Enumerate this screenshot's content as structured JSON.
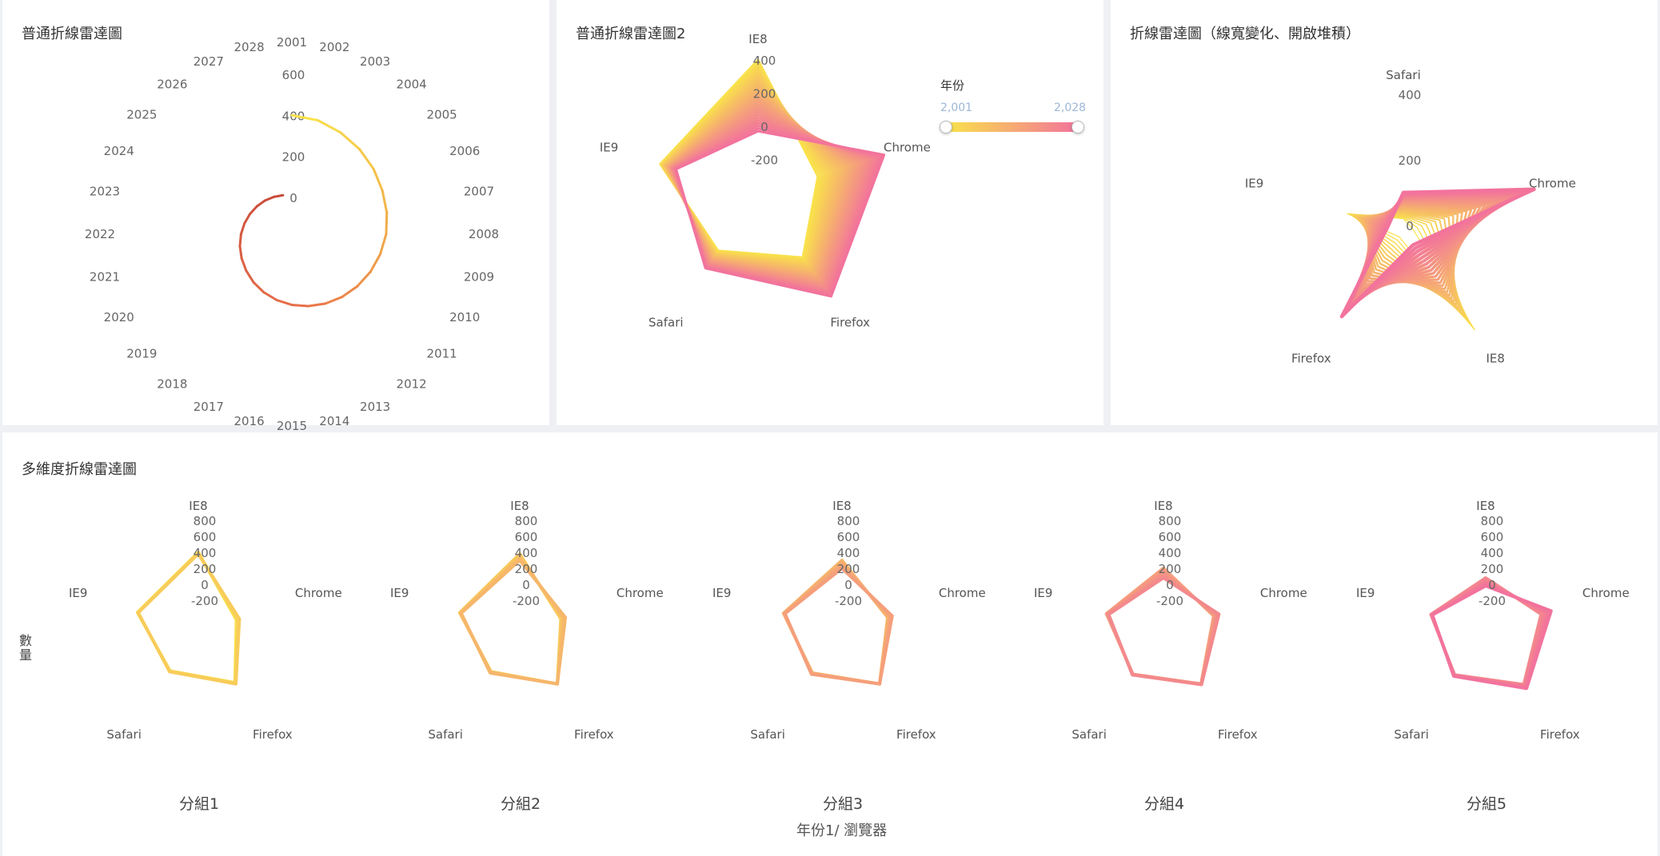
{
  "colors": {
    "low": "#f9e24a",
    "high": "#f2739c",
    "mid": "#e8704a",
    "dark": "#c84a3a"
  },
  "years": {
    "start": 2001,
    "end": 2028
  },
  "panels": [
    {
      "title": "普通折線雷達圖"
    },
    {
      "title": "普通折線雷達圖2"
    },
    {
      "title": "折線雷達圖（線寬變化、開啟堆積）"
    },
    {
      "title": "多維度折線雷達圖"
    }
  ],
  "visual_map": {
    "title": "年份",
    "min_label": "2,001",
    "max_label": "2,028"
  },
  "x_axis_name": "年份1/ 瀏覽器",
  "y_axis_name": "數量",
  "chart_data": [
    {
      "type": "line",
      "subtype": "polar",
      "title": "普通折線雷達圖",
      "angle_labels": [
        "2001",
        "2002",
        "2003",
        "2004",
        "2005",
        "2006",
        "2007",
        "2008",
        "2009",
        "2010",
        "2011",
        "2012",
        "2013",
        "2014",
        "2015",
        "2016",
        "2017",
        "2018",
        "2019",
        "2020",
        "2021",
        "2022",
        "2023",
        "2024",
        "2025",
        "2026",
        "2027",
        "2028"
      ],
      "radius_ticks": [
        "0",
        "200",
        "400",
        "600"
      ],
      "radius_range": [
        -180,
        600
      ],
      "values": [
        400,
        390,
        370,
        350,
        330,
        310,
        295,
        280,
        262,
        245,
        228,
        212,
        196,
        180,
        165,
        150,
        135,
        120,
        105,
        92,
        80,
        68,
        57,
        47,
        38,
        30,
        22,
        15
      ]
    },
    {
      "type": "line",
      "subtype": "radar",
      "title": "普通折線雷達圖2",
      "indicators": [
        "IE8",
        "Chrome",
        "Firefox",
        "Safari",
        "IE9"
      ],
      "radius_ticks": [
        "-200",
        "0",
        "200",
        "400"
      ],
      "radius_range": [
        -420,
        400
      ],
      "series_start": [
        400,
        -40,
        40,
        -10,
        200
      ],
      "series_end": [
        -30,
        380,
        330,
        120,
        100
      ],
      "series_count": 28
    },
    {
      "type": "line",
      "subtype": "radar",
      "title": "折線雷達圖（線寬變化、開啟堆積）",
      "indicators": [
        "Safari",
        "Chrome",
        "IE8",
        "Firefox",
        "IE9"
      ],
      "radius_ticks": [
        "0",
        "200",
        "400"
      ],
      "radius_range": [
        -20,
        400
      ],
      "series_start": [
        20,
        10,
        350,
        0,
        160
      ],
      "series_end": [
        100,
        400,
        30,
        300,
        30
      ],
      "series_count": 28
    },
    {
      "type": "line",
      "subtype": "radar",
      "title": "多維度折線雷達圖",
      "indicators": [
        "IE8",
        "Chrome",
        "Firefox",
        "Safari",
        "IE9"
      ],
      "radius_ticks": [
        "-200",
        "0",
        "200",
        "400",
        "600",
        "800"
      ],
      "radius_range": [
        -600,
        800
      ],
      "groups": [
        {
          "label": "分組1",
          "start": [
            400,
            -100,
            180,
            0,
            200
          ],
          "end": [
            380,
            -60,
            200,
            10,
            190
          ]
        },
        {
          "label": "分組2",
          "start": [
            380,
            -60,
            200,
            10,
            190
          ],
          "end": [
            300,
            0,
            200,
            30,
            170
          ]
        },
        {
          "label": "分組3",
          "start": [
            300,
            0,
            200,
            30,
            170
          ],
          "end": [
            200,
            60,
            200,
            50,
            150
          ]
        },
        {
          "label": "分組4",
          "start": [
            200,
            60,
            200,
            50,
            150
          ],
          "end": [
            80,
            130,
            210,
            60,
            120
          ]
        },
        {
          "label": "分組5",
          "start": [
            80,
            130,
            210,
            60,
            120
          ],
          "end": [
            -20,
            260,
            270,
            80,
            100
          ]
        }
      ],
      "lines_per_group": 6
    }
  ]
}
